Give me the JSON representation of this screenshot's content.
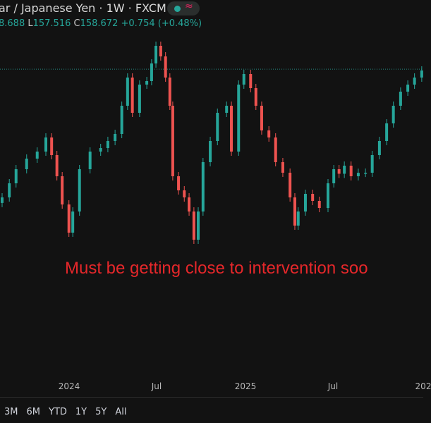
{
  "header": {
    "title": "ar / Japanese Yen · 1W · FXCM",
    "status_icon": "market-open-dot",
    "wave_icon": "≈",
    "high_value": "8.688",
    "low_label": "L",
    "low_value": "157.516",
    "close_label": "C",
    "close_value": "158.672",
    "change": "+0.754 (+0.48%)"
  },
  "annotation": "Must be getting close to intervention soo",
  "range_buttons": [
    "3M",
    "6M",
    "YTD",
    "1Y",
    "5Y",
    "All"
  ],
  "colors": {
    "up": "#26a69a",
    "down": "#ef5350",
    "annotation": "#e5272a",
    "price_line": "#26a69a"
  },
  "chart_data": {
    "type": "candlestick",
    "x_ticks": [
      "2024",
      "Jul",
      "2025",
      "Jul",
      "202"
    ],
    "last_price": 158.672,
    "grid": false,
    "closes": [
      [
        "2023-08-14",
        144.85
      ],
      [
        "2023-08-29",
        146.37
      ],
      [
        "2023-09-12",
        147.89
      ],
      [
        "2023-10-04",
        149.03
      ],
      [
        "2023-10-26",
        149.79
      ],
      [
        "2023-11-13",
        151.31
      ],
      [
        "2023-11-25",
        149.41
      ],
      [
        "2023-12-06",
        147.13
      ],
      [
        "2023-12-17",
        144.09
      ],
      [
        "2023-12-31",
        141.05
      ],
      [
        "2024-01-08",
        143.33
      ],
      [
        "2024-01-22",
        147.89
      ],
      [
        "2024-02-13",
        149.79
      ],
      [
        "2024-03-06",
        150.17
      ],
      [
        "2024-03-21",
        150.93
      ],
      [
        "2024-04-05",
        151.69
      ],
      [
        "2024-04-19",
        154.73
      ],
      [
        "2024-05-01",
        157.77
      ],
      [
        "2024-05-11",
        153.97
      ],
      [
        "2024-05-26",
        157.01
      ],
      [
        "2024-06-10",
        157.39
      ],
      [
        "2024-06-20",
        159.29
      ],
      [
        "2024-06-29",
        161.19
      ],
      [
        "2024-07-09",
        160.05
      ],
      [
        "2024-07-19",
        157.77
      ],
      [
        "2024-07-28",
        154.73
      ],
      [
        "2024-08-03",
        147.13
      ],
      [
        "2024-08-15",
        145.61
      ],
      [
        "2024-08-27",
        144.85
      ],
      [
        "2024-09-06",
        143.33
      ],
      [
        "2024-09-16",
        140.29
      ],
      [
        "2024-09-25",
        143.33
      ],
      [
        "2024-10-05",
        148.65
      ],
      [
        "2024-10-20",
        150.93
      ],
      [
        "2024-11-04",
        153.97
      ],
      [
        "2024-11-23",
        154.73
      ],
      [
        "2024-12-03",
        149.79
      ],
      [
        "2024-12-18",
        157.01
      ],
      [
        "2024-12-29",
        158.15
      ],
      [
        "2025-01-12",
        156.63
      ],
      [
        "2025-01-23",
        154.73
      ],
      [
        "2025-02-04",
        152.07
      ],
      [
        "2025-02-19",
        151.31
      ],
      [
        "2025-03-05",
        148.65
      ],
      [
        "2025-03-20",
        147.51
      ],
      [
        "2025-04-04",
        144.85
      ],
      [
        "2025-04-14",
        141.81
      ],
      [
        "2025-04-21",
        143.33
      ],
      [
        "2025-05-06",
        145.23
      ],
      [
        "2025-05-21",
        144.47
      ],
      [
        "2025-06-04",
        143.71
      ],
      [
        "2025-06-22",
        146.37
      ],
      [
        "2025-07-04",
        147.89
      ],
      [
        "2025-07-15",
        147.4
      ],
      [
        "2025-07-26",
        148.27
      ],
      [
        "2025-08-09",
        147.13
      ],
      [
        "2025-08-24",
        147.5
      ],
      [
        "2025-09-08",
        147.51
      ],
      [
        "2025-09-22",
        149.41
      ],
      [
        "2025-10-07",
        150.93
      ],
      [
        "2025-10-22",
        152.83
      ],
      [
        "2025-11-05",
        154.73
      ],
      [
        "2025-11-20",
        156.25
      ],
      [
        "2025-12-05",
        157.01
      ],
      [
        "2025-12-19",
        157.77
      ],
      [
        "2026-01-03",
        158.53
      ]
    ]
  }
}
